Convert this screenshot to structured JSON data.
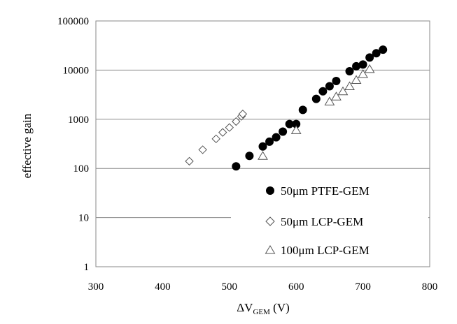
{
  "chart_data": {
    "type": "scatter",
    "title": "",
    "xlabel_main": "ΔV",
    "xlabel_sub": "GEM",
    "xlabel_unit": " (V)",
    "ylabel": "effective gain",
    "xlim": [
      300,
      800
    ],
    "ylim": [
      1,
      100000
    ],
    "yscale": "log",
    "x_ticks": [
      300,
      400,
      500,
      600,
      700,
      800
    ],
    "x_tick_labels": [
      "300",
      "400",
      "500",
      "600",
      "700",
      "800"
    ],
    "y_ticks": [
      1,
      10,
      100,
      1000,
      10000,
      100000
    ],
    "y_tick_labels": [
      "1",
      "10",
      "100",
      "1000",
      "10000",
      "100000"
    ],
    "grid": "horizontal",
    "legend_position": "lower-right",
    "series": [
      {
        "name": "50μm PTFE-GEM",
        "marker": "filled-circle",
        "color": "#000000",
        "x": [
          510,
          530,
          550,
          560,
          570,
          580,
          590,
          600,
          610,
          630,
          640,
          650,
          660,
          680,
          690,
          700,
          710,
          720,
          730
        ],
        "y": [
          110,
          180,
          280,
          350,
          430,
          560,
          800,
          800,
          1550,
          2600,
          3700,
          4700,
          6000,
          9500,
          12000,
          13000,
          18000,
          22000,
          26000
        ]
      },
      {
        "name": "50μm LCP-GEM",
        "marker": "open-diamond",
        "color": "#555555",
        "x": [
          440,
          460,
          480,
          490,
          500,
          510,
          518,
          520
        ],
        "y": [
          140,
          240,
          400,
          540,
          680,
          900,
          1150,
          1280
        ]
      },
      {
        "name": "100μm LCP-GEM",
        "marker": "open-triangle",
        "color": "#555555",
        "x": [
          550,
          600,
          650,
          660,
          670,
          680,
          690,
          700,
          710
        ],
        "y": [
          180,
          600,
          2300,
          2900,
          3700,
          4700,
          6300,
          8300,
          10500
        ]
      }
    ]
  }
}
